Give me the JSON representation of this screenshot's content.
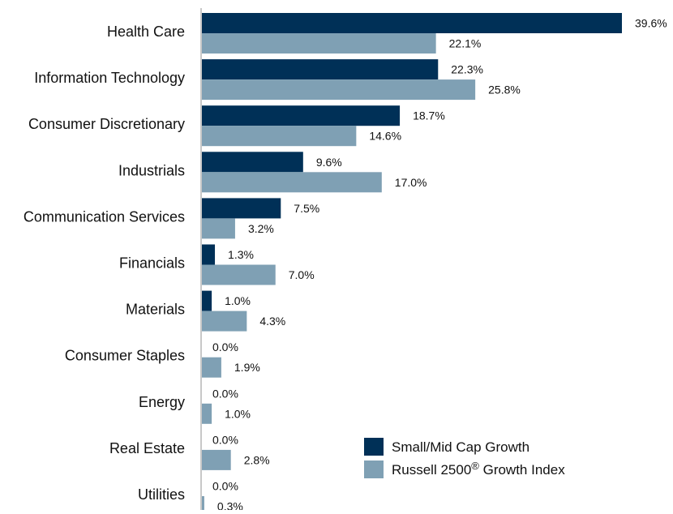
{
  "chart_data": {
    "type": "bar",
    "orientation": "horizontal",
    "categories": [
      "Health Care",
      "Information Technology",
      "Consumer Discretionary",
      "Industrials",
      "Communication Services",
      "Financials",
      "Materials",
      "Consumer Staples",
      "Energy",
      "Real Estate",
      "Utilities"
    ],
    "series": [
      {
        "name": "Small/Mid Cap Growth",
        "color": "#003057",
        "values": [
          39.6,
          22.3,
          18.7,
          9.6,
          7.5,
          1.3,
          1.0,
          0.0,
          0.0,
          0.0,
          0.0
        ],
        "labels": [
          "39.6%",
          "22.3%",
          "18.7%",
          "9.6%",
          "7.5%",
          "1.3%",
          "1.0%",
          "0.0%",
          "0.0%",
          "0.0%",
          "0.0%"
        ]
      },
      {
        "name": "Russell 2500",
        "name_sup": "®",
        "name_suffix": " Growth Index",
        "color": "#7fa0b4",
        "values": [
          22.1,
          25.8,
          14.6,
          17.0,
          3.2,
          7.0,
          4.3,
          1.9,
          1.0,
          2.8,
          0.3
        ],
        "labels": [
          "22.1%",
          "25.8%",
          "14.6%",
          "17.0%",
          "3.2%",
          "7.0%",
          "4.3%",
          "1.9%",
          "1.0%",
          "2.8%",
          "0.3%"
        ]
      }
    ],
    "title": "",
    "xlabel": "",
    "ylabel": "",
    "xlim": [
      0,
      39.6
    ],
    "grid": false,
    "legend_position": "bottom-right"
  }
}
